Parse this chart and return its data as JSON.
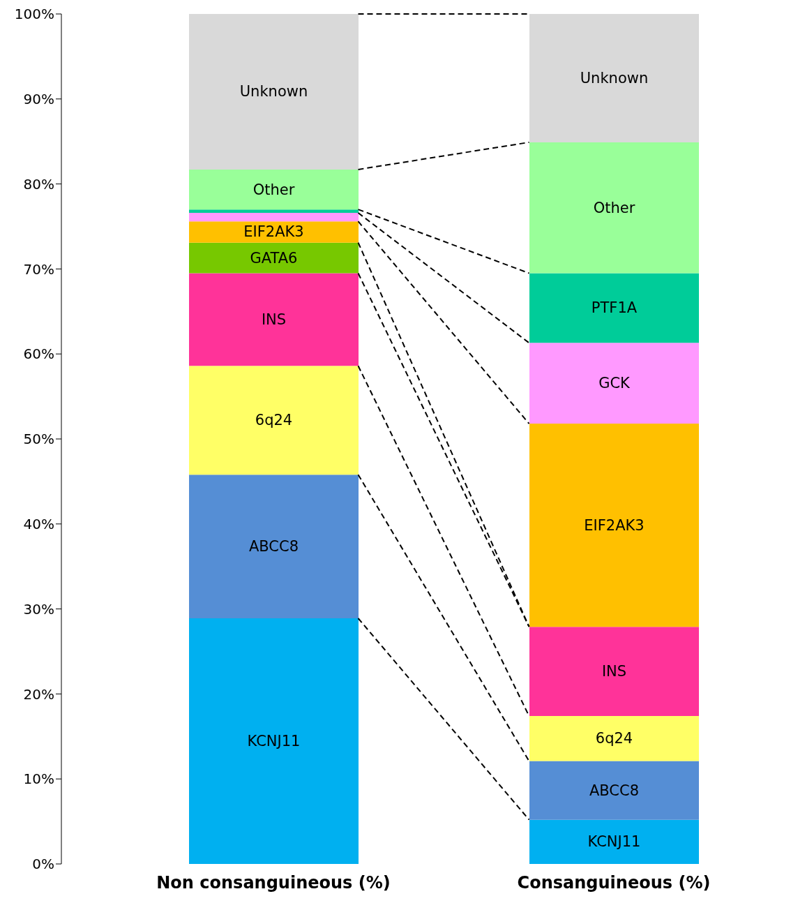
{
  "chart_data": {
    "type": "bar",
    "stacked": true,
    "categories": [
      "Non consanguineous (%)",
      "Consanguineous (%)"
    ],
    "series": [
      {
        "name": "KCNJ11",
        "color": "#00b0f0",
        "values": [
          28.9,
          5.2
        ]
      },
      {
        "name": "ABCC8",
        "color": "#558ed5",
        "values": [
          16.9,
          6.9
        ]
      },
      {
        "name": "6q24",
        "color": "#ffff66",
        "values": [
          12.8,
          5.3
        ]
      },
      {
        "name": "INS",
        "color": "#ff3399",
        "values": [
          10.9,
          10.5
        ]
      },
      {
        "name": "GATA6",
        "color": "#77c800",
        "values": [
          3.6,
          0
        ]
      },
      {
        "name": "EIF2AK3",
        "color": "#ffc000",
        "values": [
          2.5,
          23.9
        ]
      },
      {
        "name": "GCK",
        "color": "#ff99ff",
        "values": [
          1.0,
          9.5
        ]
      },
      {
        "name": "PTF1A",
        "color": "#00cc99",
        "values": [
          0.4,
          8.2
        ]
      },
      {
        "name": "Other",
        "color": "#99ff99",
        "values": [
          4.7,
          15.4
        ]
      },
      {
        "name": "Unknown",
        "color": "#d9d9d9",
        "values": [
          18.3,
          15.1
        ]
      }
    ],
    "ylim": [
      0,
      100
    ],
    "yticks": [
      {
        "value": 0,
        "label": "0%"
      },
      {
        "value": 10,
        "label": "10%"
      },
      {
        "value": 20,
        "label": "20%"
      },
      {
        "value": 30,
        "label": "30%"
      },
      {
        "value": 40,
        "label": "40%"
      },
      {
        "value": 50,
        "label": "50%"
      },
      {
        "value": 60,
        "label": "60%"
      },
      {
        "value": 70,
        "label": "70%"
      },
      {
        "value": 80,
        "label": "80%"
      },
      {
        "value": 90,
        "label": "90%"
      },
      {
        "value": 100,
        "label": "100%"
      }
    ],
    "grid": false,
    "legend": false
  }
}
